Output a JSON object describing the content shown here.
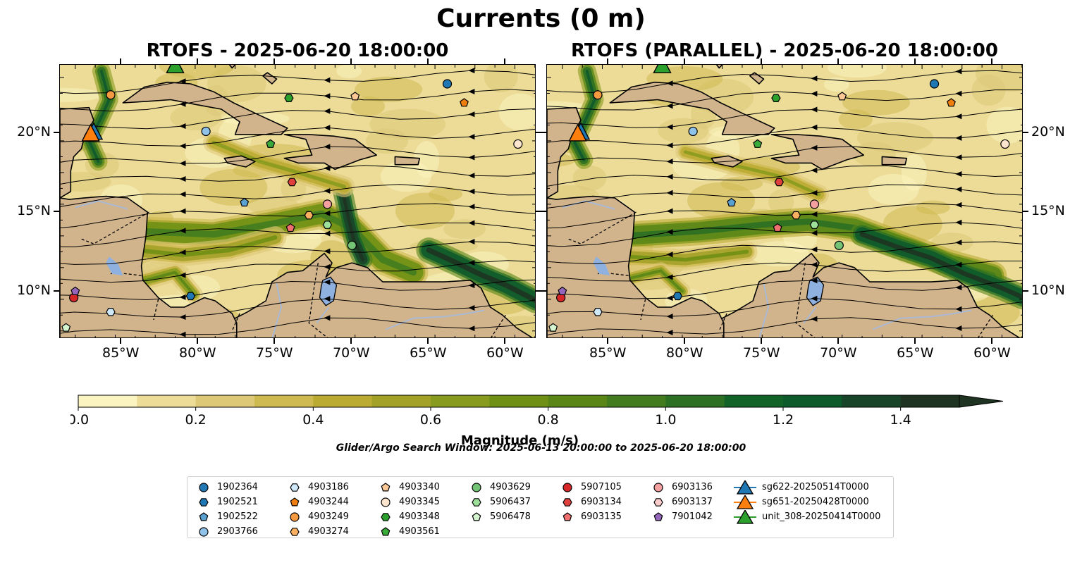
{
  "figure": {
    "title": "Currents (0 m)",
    "search_window": "Glider/Argo Search Window: 2025-06-13 20:00:00 to 2025-06-20 18:00:00"
  },
  "panels": [
    {
      "title": "RTOFS - 2025-06-20 18:00:00"
    },
    {
      "title": "RTOFS (PARALLEL) - 2025-06-20 18:00:00"
    }
  ],
  "axes": {
    "lon_ticks": [
      "85°W",
      "80°W",
      "75°W",
      "70°W",
      "65°W",
      "60°W"
    ],
    "lat_ticks": [
      "20°N",
      "15°N",
      "10°N"
    ],
    "lon_range": [
      -89.0,
      -58.0
    ],
    "lat_range": [
      7.0,
      24.3
    ]
  },
  "colorbar": {
    "label": "Magnitude (m/s)",
    "ticks": [
      "0.0",
      "0.2",
      "0.4",
      "0.6",
      "0.8",
      "1.0",
      "1.2",
      "1.4"
    ],
    "range": [
      0.0,
      1.5
    ],
    "extend": "max",
    "colors": [
      "#fbf4c0",
      "#ecdc98",
      "#ddc878",
      "#cfba52",
      "#bbab33",
      "#a3a128",
      "#889b1e",
      "#6f9014",
      "#598617",
      "#437c1f",
      "#2c7024",
      "#116328",
      "#0d5a2b",
      "#18442a",
      "#1e3321"
    ]
  },
  "colors": {
    "land": "#d2b48c",
    "lake": "#8fb1e0",
    "river": "#a9b8d3",
    "ocean_low": "#fbf4c0",
    "ocean_high": "#0d5a2b"
  },
  "legend": {
    "columns": [
      [
        {
          "label": "1902364",
          "marker": "circle",
          "color": "#1f77b4"
        },
        {
          "label": "1902521",
          "marker": "hexagon",
          "color": "#1f77b4"
        },
        {
          "label": "1902522",
          "marker": "pentagon",
          "color": "#5aa0d0"
        },
        {
          "label": "2903766",
          "marker": "circle",
          "color": "#8ec2e8"
        }
      ],
      [
        {
          "label": "4903186",
          "marker": "hexagon",
          "color": "#cfe8f8"
        },
        {
          "label": "4903244",
          "marker": "pentagon",
          "color": "#f07f10"
        },
        {
          "label": "4903249",
          "marker": "circle",
          "color": "#f59a40"
        },
        {
          "label": "4903274",
          "marker": "hexagon",
          "color": "#fbb060"
        }
      ],
      [
        {
          "label": "4903340",
          "marker": "pentagon",
          "color": "#fbc896"
        },
        {
          "label": "4903345",
          "marker": "circle",
          "color": "#fde4cc"
        },
        {
          "label": "4903348",
          "marker": "hexagon",
          "color": "#2ca02c"
        },
        {
          "label": "4903561",
          "marker": "pentagon",
          "color": "#3aaa3a"
        }
      ],
      [
        {
          "label": "4903629",
          "marker": "circle",
          "color": "#74c476"
        },
        {
          "label": "5906437",
          "marker": "hexagon",
          "color": "#9de09a"
        },
        {
          "label": "5906478",
          "marker": "pentagon",
          "color": "#d4f5d0"
        }
      ],
      [
        {
          "label": "5907105",
          "marker": "circle",
          "color": "#d62728"
        },
        {
          "label": "6903134",
          "marker": "hexagon",
          "color": "#e0413f"
        },
        {
          "label": "6903135",
          "marker": "pentagon",
          "color": "#f07070"
        }
      ],
      [
        {
          "label": "6903136",
          "marker": "circle",
          "color": "#f4a0a0"
        },
        {
          "label": "6903137",
          "marker": "hexagon",
          "color": "#fbcccc"
        },
        {
          "label": "7901042",
          "marker": "pentagon",
          "color": "#9467bd"
        }
      ],
      [
        {
          "label": "sg622-20250514T0000",
          "marker": "triangle",
          "color": "#1f77b4"
        },
        {
          "label": "sg651-20250428T0000",
          "marker": "triangle",
          "color": "#ff7f0e"
        },
        {
          "label": "unit_308-20250414T0000",
          "marker": "triangle",
          "color": "#2ca02c"
        }
      ]
    ]
  },
  "floats": [
    {
      "id": "1902364",
      "lon": -63.8,
      "lat": 23.1
    },
    {
      "id": "1902521",
      "lon": -80.5,
      "lat": 9.7
    },
    {
      "id": "1902522",
      "lon": -77.0,
      "lat": 15.6
    },
    {
      "id": "2903766",
      "lon": -79.5,
      "lat": 20.1
    },
    {
      "id": "4903186",
      "lon": -85.7,
      "lat": 8.7
    },
    {
      "id": "4903244",
      "lon": -62.7,
      "lat": 21.9
    },
    {
      "id": "4903249",
      "lon": -85.7,
      "lat": 22.4
    },
    {
      "id": "4903274",
      "lon": -72.8,
      "lat": 14.8
    },
    {
      "id": "4903340",
      "lon": -69.8,
      "lat": 22.3
    },
    {
      "id": "4903345",
      "lon": -59.2,
      "lat": 19.3
    },
    {
      "id": "4903348",
      "lon": -74.1,
      "lat": 22.2
    },
    {
      "id": "4903561",
      "lon": -75.3,
      "lat": 19.3
    },
    {
      "id": "4903629",
      "lon": -70.0,
      "lat": 12.9
    },
    {
      "id": "5906437",
      "lon": -71.6,
      "lat": 14.2
    },
    {
      "id": "5906478",
      "lon": -88.6,
      "lat": 7.7
    },
    {
      "id": "5907105",
      "lon": -88.1,
      "lat": 9.6
    },
    {
      "id": "6903134",
      "lon": -73.9,
      "lat": 16.9
    },
    {
      "id": "6903135",
      "lon": -74.0,
      "lat": 14.0
    },
    {
      "id": "6903136",
      "lon": -71.6,
      "lat": 15.5
    },
    {
      "id": "7901042",
      "lon": -88.0,
      "lat": 10.0
    }
  ],
  "gliders": [
    {
      "id": "sg622-20250514T0000",
      "lon": -86.8,
      "lat": 20.0
    },
    {
      "id": "sg651-20250428T0000",
      "lon": -87.0,
      "lat": 19.9
    },
    {
      "id": "unit_308-20250414T0000",
      "lon": -81.5,
      "lat": 24.2
    }
  ]
}
